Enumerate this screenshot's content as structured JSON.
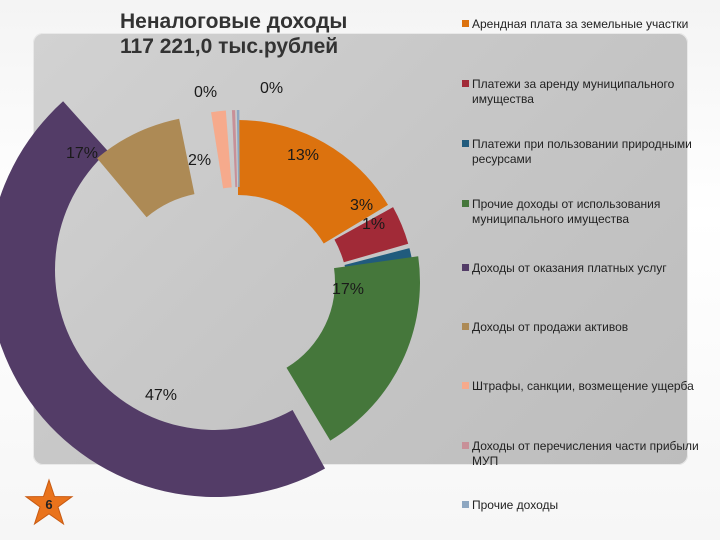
{
  "title": {
    "line1": "Неналоговые доходы",
    "line2": "117 221,0 тыс.рублей"
  },
  "slide_number": "6",
  "colors": {
    "panel": "#c9c9c9",
    "badge": "#e9731c"
  },
  "chart_data": {
    "type": "pie",
    "variant": "exploded-doughnut",
    "title": "Неналоговые доходы 117 221,0 тыс.рублей",
    "legend_position": "right",
    "series": [
      {
        "name": "Арендная плата за земельные участки",
        "value": 13,
        "label": "13%",
        "color": "#dc720e"
      },
      {
        "name": "Платежи  за  аренду муниципального имущества",
        "value": 3,
        "label": "3%",
        "color": "#a12a37"
      },
      {
        "name": "Платежи при пользовании природными ресурсами",
        "value": 1,
        "label": "1%",
        "color": "#215b7d"
      },
      {
        "name": "Прочие доходы от использования муниципального имущества",
        "value": 17,
        "label": "17%",
        "color": "#45773b"
      },
      {
        "name": "Доходы от оказания платных услуг",
        "value": 47,
        "label": "47%",
        "color": "#533c67"
      },
      {
        "name": "Доходы  от  продажи   активов",
        "value": 17,
        "label": "17%",
        "color": "#ad8a55"
      },
      {
        "name": "Штрафы, санкции, возмещение ущерба",
        "value": 2,
        "label": "2%",
        "color": "#f6aa8c"
      },
      {
        "name": "Доходы от перечисления части прибыли МУП",
        "value": 0,
        "label": "0%",
        "color": "#c89098"
      },
      {
        "name": "Прочие доходы",
        "value": 0,
        "label": "0%",
        "color": "#8ea7c1"
      }
    ]
  }
}
